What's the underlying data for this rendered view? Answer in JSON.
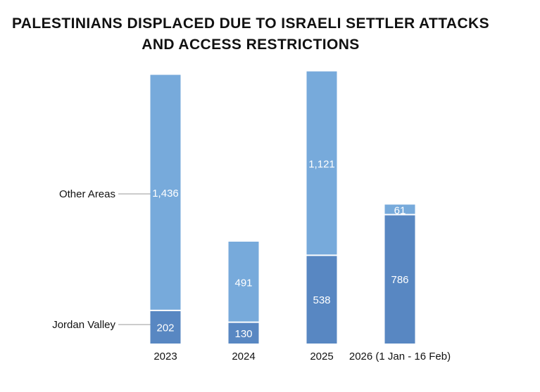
{
  "chart_data": {
    "type": "bar",
    "stacked": true,
    "title": [
      "PALESTINIANS DISPLACED DUE TO ISRAELI SETTLER ATTACKS",
      "AND ACCESS RESTRICTIONS"
    ],
    "categories": [
      "2023",
      "2024",
      "2025",
      "2026 (1 Jan - 16 Feb)"
    ],
    "series": [
      {
        "name": "Jordan Valley",
        "color": "#5887c2",
        "values": [
          202,
          130,
          538,
          786
        ],
        "labels": [
          "202",
          "130",
          "538",
          "786"
        ]
      },
      {
        "name": "Other Areas",
        "color": "#77aadb",
        "values": [
          1436,
          491,
          1121,
          61
        ],
        "labels": [
          "1,436",
          "491",
          "1,121",
          "61"
        ]
      }
    ],
    "legend": "left, inline callouts",
    "xlabel": "",
    "ylabel": "",
    "grid": false
  }
}
